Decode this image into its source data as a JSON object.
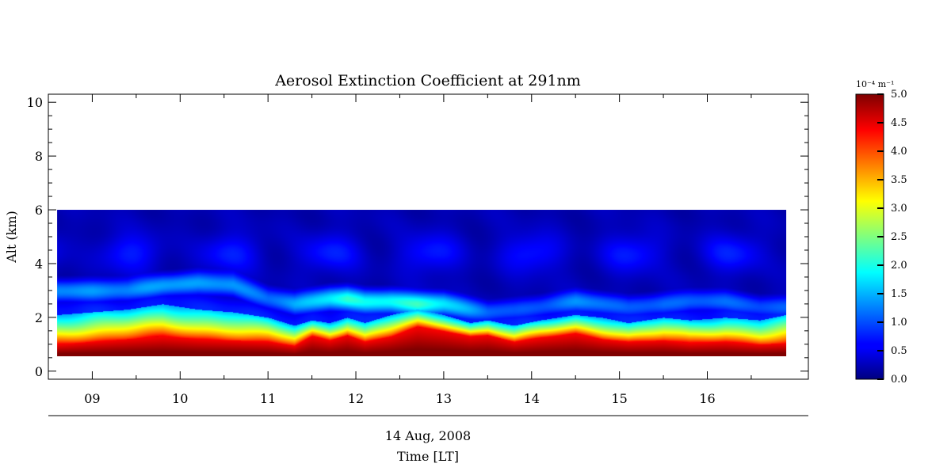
{
  "chart_data": {
    "type": "heatmap",
    "title": "Aerosol Extinction Coefficient at 291nm",
    "ylabel": "Alt (km)",
    "xlabel": "Time [LT]",
    "date_label": "14 Aug, 2008",
    "x_range": [
      8.5,
      17.15
    ],
    "y_range": [
      -0.3,
      10.3
    ],
    "data_extent": {
      "x": [
        8.6,
        16.9
      ],
      "y": [
        0.55,
        6.0
      ]
    },
    "x_ticks": [
      {
        "value": 9,
        "label": "09"
      },
      {
        "value": 10,
        "label": "10"
      },
      {
        "value": 11,
        "label": "11"
      },
      {
        "value": 12,
        "label": "12"
      },
      {
        "value": 13,
        "label": "13"
      },
      {
        "value": 14,
        "label": "14"
      },
      {
        "value": 15,
        "label": "15"
      },
      {
        "value": 16,
        "label": "16"
      }
    ],
    "y_ticks": [
      {
        "value": 0,
        "label": "0"
      },
      {
        "value": 2,
        "label": "2"
      },
      {
        "value": 4,
        "label": "4"
      },
      {
        "value": 6,
        "label": "6"
      },
      {
        "value": 8,
        "label": "8"
      },
      {
        "value": 10,
        "label": "10"
      }
    ],
    "colorbar": {
      "unit": "10⁻⁴ m⁻¹",
      "range": [
        0.0,
        5.0
      ],
      "colormap": "jet",
      "ticks": [
        {
          "value": 0.0,
          "label": "0.0"
        },
        {
          "value": 0.5,
          "label": "0.5"
        },
        {
          "value": 1.0,
          "label": "1.0"
        },
        {
          "value": 1.5,
          "label": "1.5"
        },
        {
          "value": 2.0,
          "label": "2.0"
        },
        {
          "value": 2.5,
          "label": "2.5"
        },
        {
          "value": 3.0,
          "label": "3.0"
        },
        {
          "value": 3.5,
          "label": "3.5"
        },
        {
          "value": 4.0,
          "label": "4.0"
        },
        {
          "value": 4.5,
          "label": "4.5"
        },
        {
          "value": 5.0,
          "label": "5.0"
        }
      ]
    },
    "profile": {
      "time": [
        8.6,
        9.0,
        9.4,
        9.8,
        10.2,
        10.6,
        11.0,
        11.3,
        11.5,
        11.7,
        11.9,
        12.1,
        12.4,
        12.7,
        13.0,
        13.3,
        13.5,
        13.8,
        14.1,
        14.5,
        14.8,
        15.1,
        15.5,
        15.8,
        16.2,
        16.6,
        16.9
      ],
      "surface_layer_top_km": [
        1.0,
        1.1,
        1.2,
        1.3,
        1.2,
        1.15,
        1.1,
        0.95,
        1.3,
        1.15,
        1.35,
        1.1,
        1.3,
        1.65,
        1.5,
        1.3,
        1.35,
        1.1,
        1.25,
        1.4,
        1.2,
        1.1,
        1.15,
        1.05,
        1.1,
        1.0,
        1.05
      ],
      "aerosol_layer_top_km": [
        2.1,
        2.2,
        2.3,
        2.5,
        2.3,
        2.2,
        2.0,
        1.7,
        1.9,
        1.8,
        2.0,
        1.8,
        2.1,
        2.3,
        2.1,
        1.8,
        1.9,
        1.7,
        1.9,
        2.1,
        2.0,
        1.8,
        2.0,
        1.9,
        2.0,
        1.9,
        2.1
      ],
      "elevated_layer_km": [
        3.0,
        3.0,
        3.0,
        3.2,
        3.3,
        3.2,
        2.7,
        2.5,
        2.6,
        2.7,
        2.7,
        2.6,
        2.6,
        2.5,
        2.5,
        2.3,
        2.2,
        2.3,
        2.4,
        2.6,
        2.5,
        2.4,
        2.5,
        2.6,
        2.6,
        2.4,
        2.4
      ],
      "elevated_layer_strength": [
        1.3,
        1.4,
        1.3,
        1.4,
        1.4,
        1.4,
        1.2,
        1.5,
        1.6,
        1.8,
        2.1,
        1.9,
        2.0,
        2.2,
        1.8,
        1.4,
        1.1,
        1.0,
        1.1,
        1.3,
        1.2,
        1.0,
        1.2,
        1.1,
        1.1,
        1.0,
        1.1
      ]
    }
  }
}
